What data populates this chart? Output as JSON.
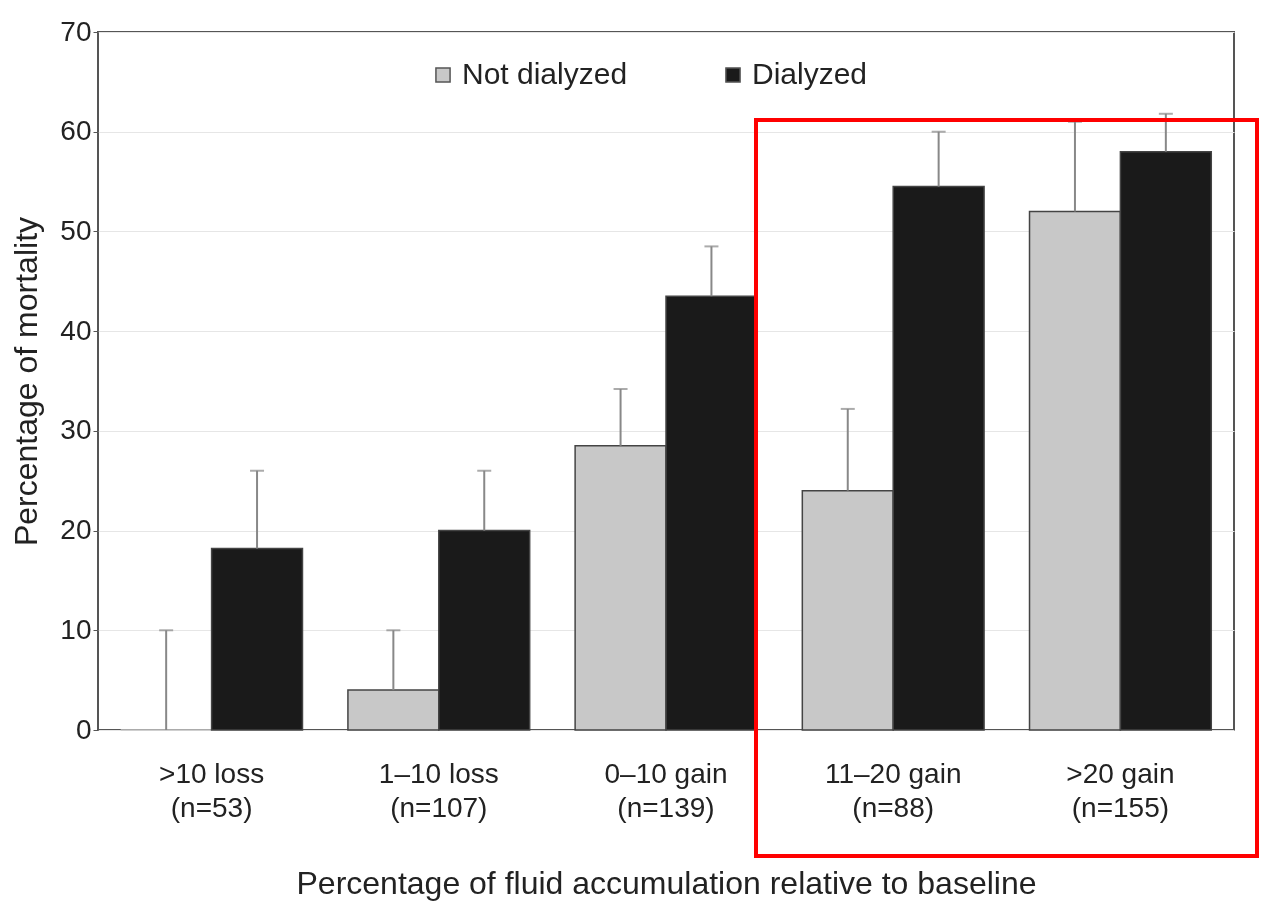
{
  "chart_data": {
    "type": "bar",
    "ylabel": "Percentage of mortality",
    "xlabel": "Percentage of fluid accumulation relative to baseline",
    "categories": [
      ">10 loss\n(n=53)",
      "1–10 loss\n(n=107)",
      "0–10 gain\n(n=139)",
      "11–20 gain\n(n=88)",
      ">20 gain\n(n=155)"
    ],
    "series": [
      {
        "name": "Not dialyzed",
        "color": "#c8c8c8",
        "values": [
          0,
          4,
          28.5,
          24,
          52
        ],
        "errors": [
          [
            0,
            10
          ],
          [
            4,
            10
          ],
          [
            28.5,
            34.2
          ],
          [
            24,
            32.2
          ],
          [
            52,
            61
          ]
        ]
      },
      {
        "name": "Dialyzed",
        "color": "#1a1a1a",
        "values": [
          18.2,
          20,
          43.5,
          54.5,
          58
        ],
        "errors": [
          [
            18.2,
            26
          ],
          [
            20,
            26
          ],
          [
            43.5,
            48.5
          ],
          [
            54.5,
            60
          ],
          [
            58,
            61.8
          ]
        ]
      }
    ],
    "ylim": [
      0,
      70
    ],
    "yticks": [
      0,
      10,
      20,
      30,
      40,
      50,
      60,
      70
    ],
    "grid": "y",
    "legend": "top"
  }
}
